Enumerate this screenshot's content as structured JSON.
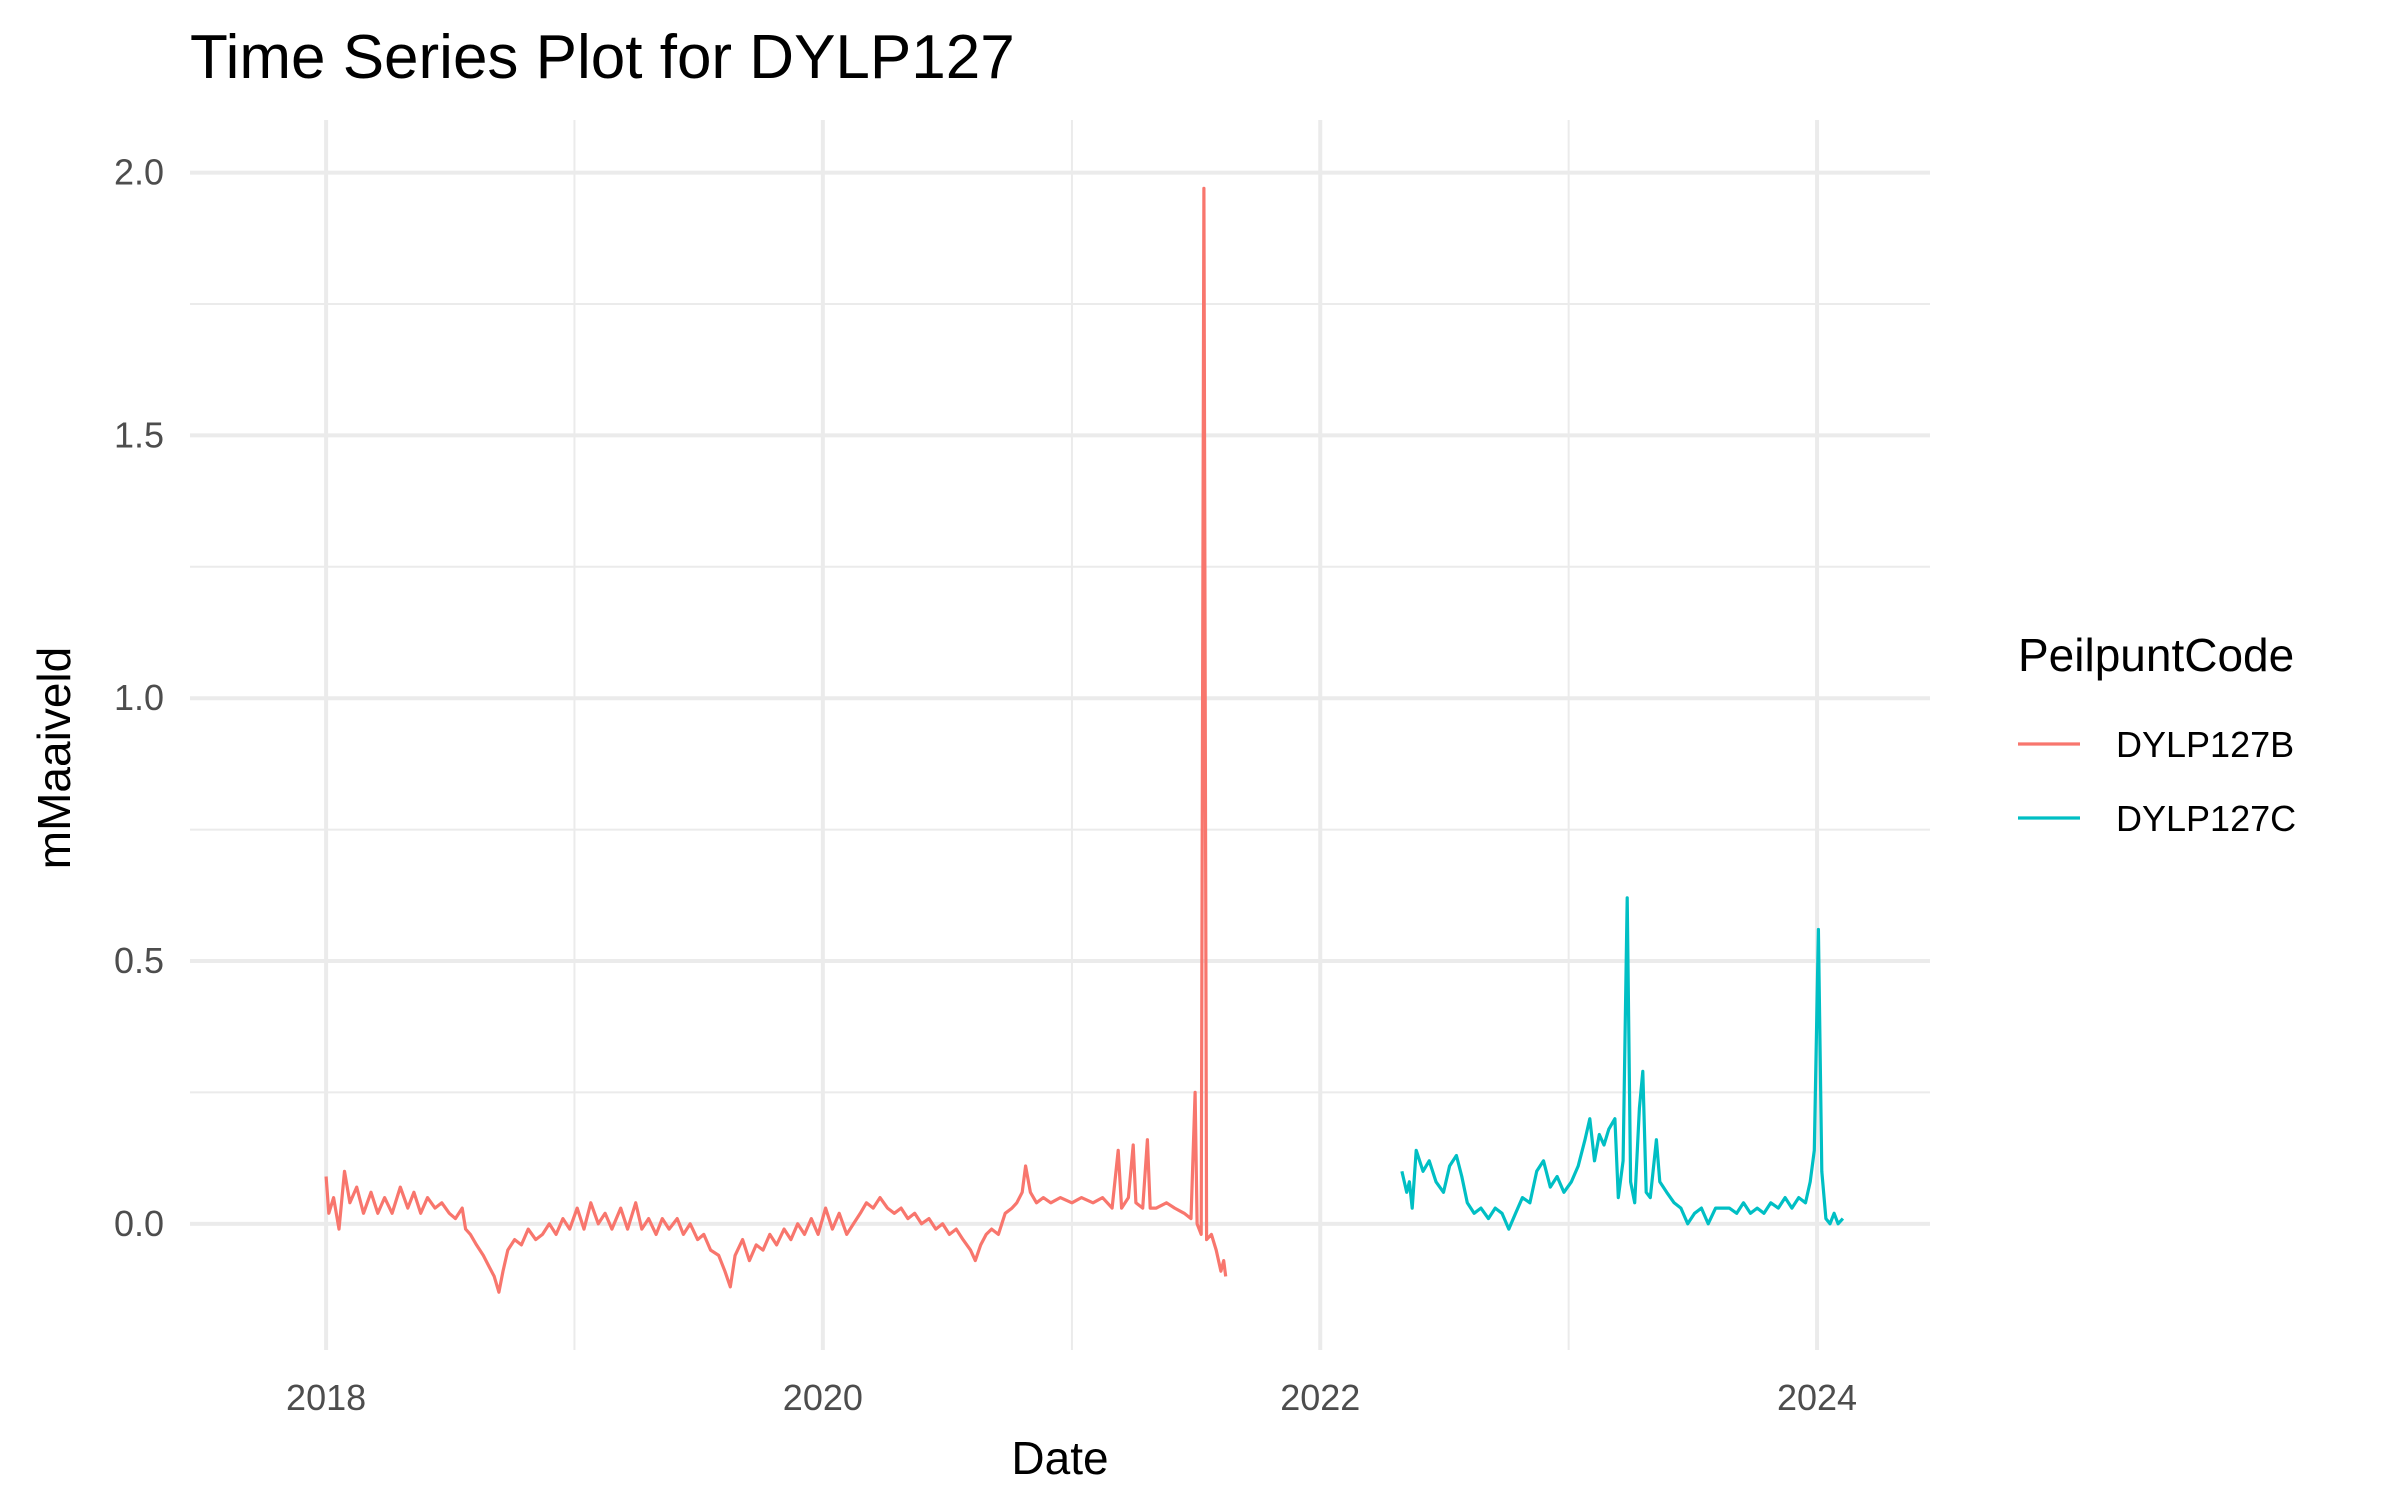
{
  "chart_data": {
    "type": "line",
    "title": "Time Series Plot for DYLP127",
    "xlabel": "Date",
    "ylabel": "mMaaiveld",
    "xlim": [
      "2017-06-15",
      "2024-06-15"
    ],
    "ylim": [
      -0.24,
      2.1
    ],
    "x_ticks": [
      {
        "label": "2018",
        "date": "2018-01-01"
      },
      {
        "label": "2020",
        "date": "2020-01-01"
      },
      {
        "label": "2022",
        "date": "2022-01-01"
      },
      {
        "label": "2024",
        "date": "2024-01-01"
      }
    ],
    "x_minor_ticks": [
      "2019-01-01",
      "2021-01-01",
      "2023-01-01"
    ],
    "y_ticks": [
      {
        "label": "0.0",
        "value": 0.0
      },
      {
        "label": "0.5",
        "value": 0.5
      },
      {
        "label": "1.0",
        "value": 1.0
      },
      {
        "label": "1.5",
        "value": 1.5
      },
      {
        "label": "2.0",
        "value": 2.0
      }
    ],
    "y_minor_ticks": [
      0.25,
      0.75,
      1.25,
      1.75
    ],
    "grid": true,
    "legend": {
      "title": "PeilpuntCode",
      "position": "right"
    },
    "series": [
      {
        "name": "DYLP127B",
        "color": "#F8766D",
        "points": [
          [
            "2018-01-01",
            0.09
          ],
          [
            "2018-01-05",
            0.02
          ],
          [
            "2018-01-12",
            0.05
          ],
          [
            "2018-01-20",
            -0.01
          ],
          [
            "2018-01-28",
            0.1
          ],
          [
            "2018-02-05",
            0.04
          ],
          [
            "2018-02-15",
            0.07
          ],
          [
            "2018-02-25",
            0.02
          ],
          [
            "2018-03-08",
            0.06
          ],
          [
            "2018-03-18",
            0.02
          ],
          [
            "2018-03-28",
            0.05
          ],
          [
            "2018-04-08",
            0.02
          ],
          [
            "2018-04-20",
            0.07
          ],
          [
            "2018-05-01",
            0.03
          ],
          [
            "2018-05-10",
            0.06
          ],
          [
            "2018-05-20",
            0.02
          ],
          [
            "2018-05-30",
            0.05
          ],
          [
            "2018-06-10",
            0.03
          ],
          [
            "2018-06-20",
            0.04
          ],
          [
            "2018-07-01",
            0.02
          ],
          [
            "2018-07-10",
            0.01
          ],
          [
            "2018-07-20",
            0.03
          ],
          [
            "2018-07-25",
            -0.01
          ],
          [
            "2018-08-01",
            -0.02
          ],
          [
            "2018-08-10",
            -0.04
          ],
          [
            "2018-08-20",
            -0.06
          ],
          [
            "2018-08-28",
            -0.08
          ],
          [
            "2018-09-05",
            -0.1
          ],
          [
            "2018-09-12",
            -0.13
          ],
          [
            "2018-09-18",
            -0.09
          ],
          [
            "2018-09-25",
            -0.05
          ],
          [
            "2018-10-05",
            -0.03
          ],
          [
            "2018-10-15",
            -0.04
          ],
          [
            "2018-10-25",
            -0.01
          ],
          [
            "2018-11-05",
            -0.03
          ],
          [
            "2018-11-15",
            -0.02
          ],
          [
            "2018-11-25",
            0.0
          ],
          [
            "2018-12-05",
            -0.02
          ],
          [
            "2018-12-15",
            0.01
          ],
          [
            "2018-12-25",
            -0.01
          ],
          [
            "2019-01-05",
            0.03
          ],
          [
            "2019-01-15",
            -0.01
          ],
          [
            "2019-01-25",
            0.04
          ],
          [
            "2019-02-05",
            0.0
          ],
          [
            "2019-02-15",
            0.02
          ],
          [
            "2019-02-25",
            -0.01
          ],
          [
            "2019-03-10",
            0.03
          ],
          [
            "2019-03-20",
            -0.01
          ],
          [
            "2019-04-01",
            0.04
          ],
          [
            "2019-04-10",
            -0.01
          ],
          [
            "2019-04-20",
            0.01
          ],
          [
            "2019-05-01",
            -0.02
          ],
          [
            "2019-05-10",
            0.01
          ],
          [
            "2019-05-20",
            -0.01
          ],
          [
            "2019-06-01",
            0.01
          ],
          [
            "2019-06-10",
            -0.02
          ],
          [
            "2019-06-20",
            0.0
          ],
          [
            "2019-07-01",
            -0.03
          ],
          [
            "2019-07-10",
            -0.02
          ],
          [
            "2019-07-20",
            -0.05
          ],
          [
            "2019-08-01",
            -0.06
          ],
          [
            "2019-08-10",
            -0.09
          ],
          [
            "2019-08-18",
            -0.12
          ],
          [
            "2019-08-25",
            -0.06
          ],
          [
            "2019-09-05",
            -0.03
          ],
          [
            "2019-09-15",
            -0.07
          ],
          [
            "2019-09-25",
            -0.04
          ],
          [
            "2019-10-05",
            -0.05
          ],
          [
            "2019-10-15",
            -0.02
          ],
          [
            "2019-10-25",
            -0.04
          ],
          [
            "2019-11-05",
            -0.01
          ],
          [
            "2019-11-15",
            -0.03
          ],
          [
            "2019-11-25",
            0.0
          ],
          [
            "2019-12-05",
            -0.02
          ],
          [
            "2019-12-15",
            0.01
          ],
          [
            "2019-12-25",
            -0.02
          ],
          [
            "2020-01-05",
            0.03
          ],
          [
            "2020-01-15",
            -0.01
          ],
          [
            "2020-01-25",
            0.02
          ],
          [
            "2020-02-05",
            -0.02
          ],
          [
            "2020-02-15",
            0.0
          ],
          [
            "2020-02-25",
            0.02
          ],
          [
            "2020-03-05",
            0.04
          ],
          [
            "2020-03-15",
            0.03
          ],
          [
            "2020-03-25",
            0.05
          ],
          [
            "2020-04-05",
            0.03
          ],
          [
            "2020-04-15",
            0.02
          ],
          [
            "2020-04-25",
            0.03
          ],
          [
            "2020-05-05",
            0.01
          ],
          [
            "2020-05-15",
            0.02
          ],
          [
            "2020-05-25",
            0.0
          ],
          [
            "2020-06-05",
            0.01
          ],
          [
            "2020-06-15",
            -0.01
          ],
          [
            "2020-06-25",
            0.0
          ],
          [
            "2020-07-05",
            -0.02
          ],
          [
            "2020-07-15",
            -0.01
          ],
          [
            "2020-07-25",
            -0.03
          ],
          [
            "2020-08-05",
            -0.05
          ],
          [
            "2020-08-12",
            -0.07
          ],
          [
            "2020-08-20",
            -0.04
          ],
          [
            "2020-08-28",
            -0.02
          ],
          [
            "2020-09-05",
            -0.01
          ],
          [
            "2020-09-15",
            -0.02
          ],
          [
            "2020-09-25",
            0.02
          ],
          [
            "2020-10-05",
            0.03
          ],
          [
            "2020-10-12",
            0.04
          ],
          [
            "2020-10-20",
            0.06
          ],
          [
            "2020-10-25",
            0.11
          ],
          [
            "2020-11-01",
            0.06
          ],
          [
            "2020-11-10",
            0.04
          ],
          [
            "2020-11-20",
            0.05
          ],
          [
            "2020-12-01",
            0.04
          ],
          [
            "2020-12-15",
            0.05
          ],
          [
            "2021-01-01",
            0.04
          ],
          [
            "2021-01-15",
            0.05
          ],
          [
            "2021-02-01",
            0.04
          ],
          [
            "2021-02-15",
            0.05
          ],
          [
            "2021-03-01",
            0.03
          ],
          [
            "2021-03-10",
            0.14
          ],
          [
            "2021-03-15",
            0.03
          ],
          [
            "2021-03-25",
            0.05
          ],
          [
            "2021-04-01",
            0.15
          ],
          [
            "2021-04-05",
            0.04
          ],
          [
            "2021-04-15",
            0.03
          ],
          [
            "2021-04-22",
            0.16
          ],
          [
            "2021-04-26",
            0.03
          ],
          [
            "2021-05-05",
            0.03
          ],
          [
            "2021-05-20",
            0.04
          ],
          [
            "2021-06-01",
            0.03
          ],
          [
            "2021-06-15",
            0.02
          ],
          [
            "2021-06-25",
            0.01
          ],
          [
            "2021-07-01",
            0.25
          ],
          [
            "2021-07-04",
            0.0
          ],
          [
            "2021-07-10",
            -0.02
          ],
          [
            "2021-07-14",
            1.97
          ],
          [
            "2021-07-18",
            -0.03
          ],
          [
            "2021-07-25",
            -0.02
          ],
          [
            "2021-08-01",
            -0.05
          ],
          [
            "2021-08-08",
            -0.09
          ],
          [
            "2021-08-12",
            -0.07
          ],
          [
            "2021-08-15",
            -0.1
          ]
        ]
      },
      {
        "name": "DYLP127C",
        "color": "#00BFC4",
        "points": [
          [
            "2022-05-01",
            0.1
          ],
          [
            "2022-05-08",
            0.06
          ],
          [
            "2022-05-12",
            0.08
          ],
          [
            "2022-05-16",
            0.03
          ],
          [
            "2022-05-22",
            0.14
          ],
          [
            "2022-06-01",
            0.1
          ],
          [
            "2022-06-10",
            0.12
          ],
          [
            "2022-06-20",
            0.08
          ],
          [
            "2022-07-01",
            0.06
          ],
          [
            "2022-07-10",
            0.11
          ],
          [
            "2022-07-20",
            0.13
          ],
          [
            "2022-07-28",
            0.09
          ],
          [
            "2022-08-05",
            0.04
          ],
          [
            "2022-08-15",
            0.02
          ],
          [
            "2022-08-25",
            0.03
          ],
          [
            "2022-09-05",
            0.01
          ],
          [
            "2022-09-15",
            0.03
          ],
          [
            "2022-09-25",
            0.02
          ],
          [
            "2022-10-05",
            -0.01
          ],
          [
            "2022-10-15",
            0.02
          ],
          [
            "2022-10-25",
            0.05
          ],
          [
            "2022-11-05",
            0.04
          ],
          [
            "2022-11-15",
            0.1
          ],
          [
            "2022-11-25",
            0.12
          ],
          [
            "2022-12-05",
            0.07
          ],
          [
            "2022-12-15",
            0.09
          ],
          [
            "2022-12-25",
            0.06
          ],
          [
            "2023-01-05",
            0.08
          ],
          [
            "2023-01-15",
            0.11
          ],
          [
            "2023-01-25",
            0.16
          ],
          [
            "2023-02-01",
            0.2
          ],
          [
            "2023-02-08",
            0.12
          ],
          [
            "2023-02-15",
            0.17
          ],
          [
            "2023-02-22",
            0.15
          ],
          [
            "2023-03-01",
            0.18
          ],
          [
            "2023-03-10",
            0.2
          ],
          [
            "2023-03-15",
            0.05
          ],
          [
            "2023-03-22",
            0.12
          ],
          [
            "2023-03-28",
            0.62
          ],
          [
            "2023-04-02",
            0.08
          ],
          [
            "2023-04-08",
            0.04
          ],
          [
            "2023-04-15",
            0.22
          ],
          [
            "2023-04-20",
            0.29
          ],
          [
            "2023-04-25",
            0.06
          ],
          [
            "2023-05-01",
            0.05
          ],
          [
            "2023-05-10",
            0.16
          ],
          [
            "2023-05-15",
            0.08
          ],
          [
            "2023-05-25",
            0.06
          ],
          [
            "2023-06-05",
            0.04
          ],
          [
            "2023-06-15",
            0.03
          ],
          [
            "2023-06-25",
            0.0
          ],
          [
            "2023-07-05",
            0.02
          ],
          [
            "2023-07-15",
            0.03
          ],
          [
            "2023-07-25",
            0.0
          ],
          [
            "2023-08-05",
            0.03
          ],
          [
            "2023-08-15",
            0.03
          ],
          [
            "2023-08-25",
            0.03
          ],
          [
            "2023-09-05",
            0.02
          ],
          [
            "2023-09-15",
            0.04
          ],
          [
            "2023-09-25",
            0.02
          ],
          [
            "2023-10-05",
            0.03
          ],
          [
            "2023-10-15",
            0.02
          ],
          [
            "2023-10-25",
            0.04
          ],
          [
            "2023-11-05",
            0.03
          ],
          [
            "2023-11-15",
            0.05
          ],
          [
            "2023-11-25",
            0.03
          ],
          [
            "2023-12-05",
            0.05
          ],
          [
            "2023-12-15",
            0.04
          ],
          [
            "2023-12-22",
            0.08
          ],
          [
            "2023-12-28",
            0.14
          ],
          [
            "2024-01-03",
            0.56
          ],
          [
            "2024-01-08",
            0.1
          ],
          [
            "2024-01-14",
            0.01
          ],
          [
            "2024-01-20",
            0.0
          ],
          [
            "2024-01-26",
            0.02
          ],
          [
            "2024-02-01",
            0.0
          ],
          [
            "2024-02-08",
            0.01
          ]
        ]
      }
    ]
  }
}
